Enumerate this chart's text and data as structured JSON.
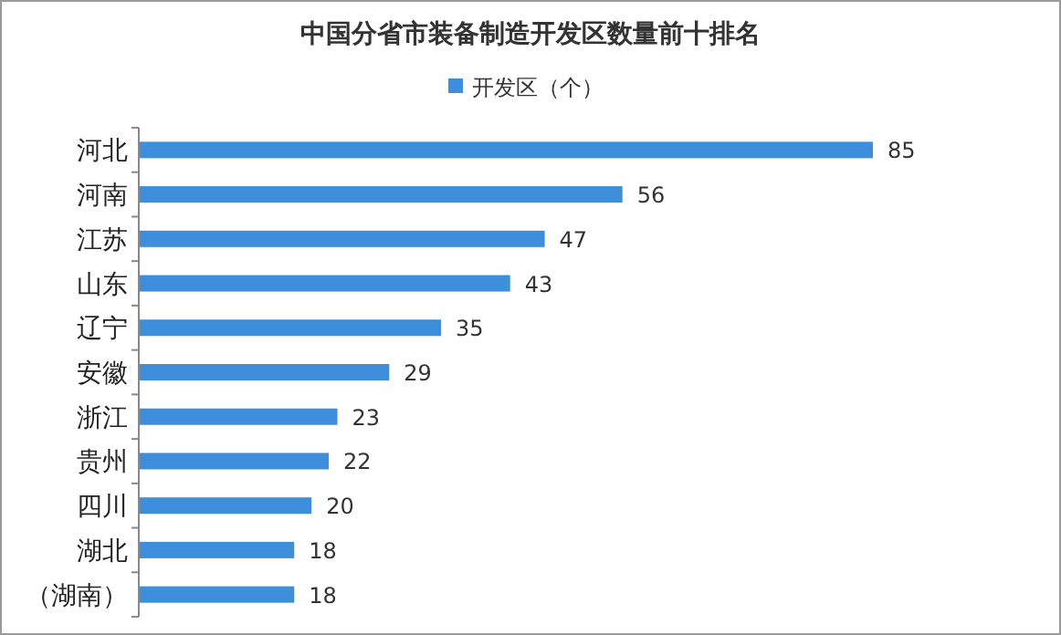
{
  "chart_data": {
    "type": "bar",
    "orientation": "horizontal",
    "title": "中国分省市装备制造开发区数量前十排名",
    "categories": [
      "河北",
      "河南",
      "江苏",
      "山东",
      "辽宁",
      "安徽",
      "浙江",
      "贵州",
      "四川",
      "湖北",
      "（湖南）"
    ],
    "series": [
      {
        "name": "开发区（个）",
        "color": "#3d8fdc",
        "values": [
          85,
          56,
          47,
          43,
          35,
          29,
          23,
          22,
          20,
          18,
          18
        ]
      }
    ],
    "data_labels": true,
    "legend": "top"
  }
}
